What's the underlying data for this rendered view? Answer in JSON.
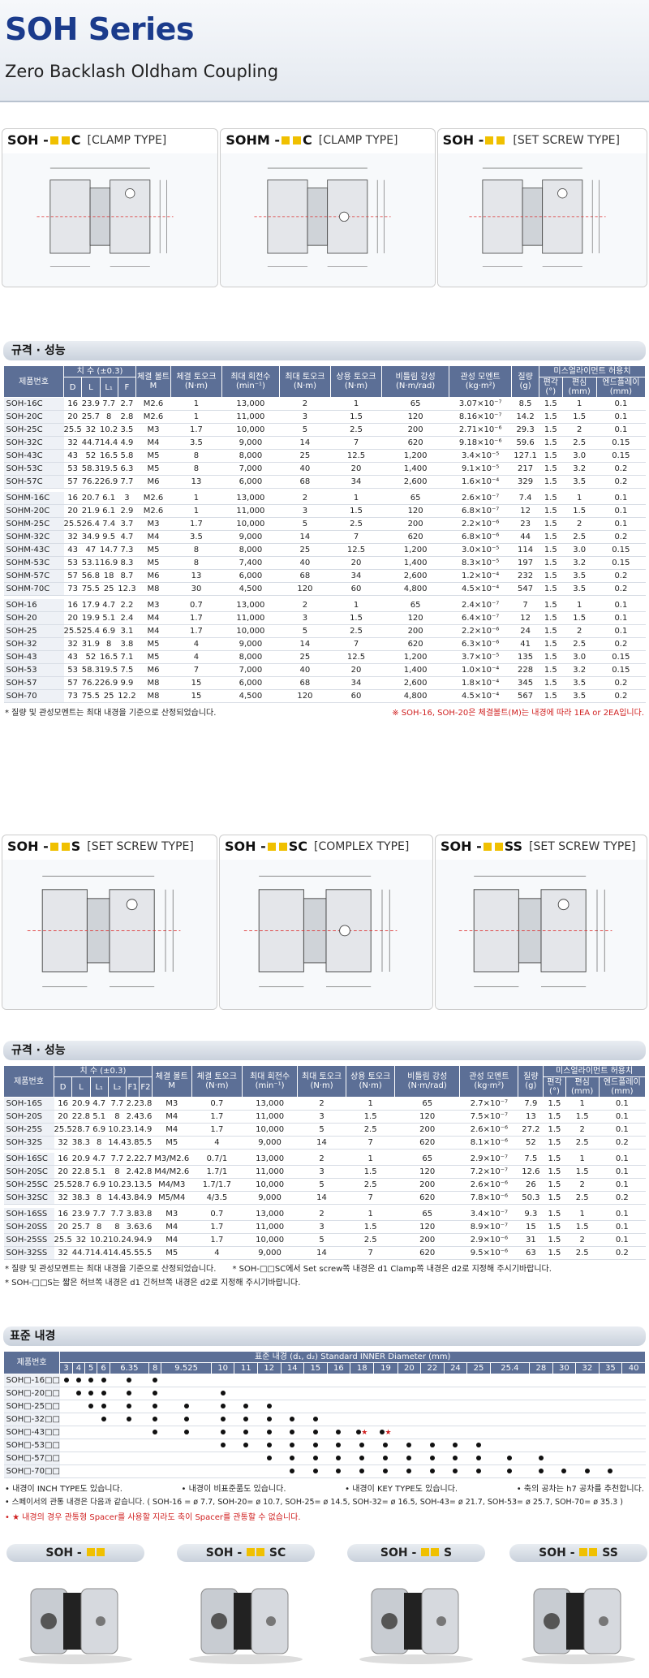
{
  "title": "SOH Series",
  "subtitle": "Zero Backlash Oldham Coupling",
  "drawings1": [
    {
      "name": "SOH -",
      "suffix": "C",
      "type": "[CLAMP TYPE]"
    },
    {
      "name": "SOHM -",
      "suffix": "C",
      "type": "[CLAMP TYPE]"
    },
    {
      "name": "SOH -",
      "suffix": "",
      "type": "[SET SCREW TYPE]"
    }
  ],
  "drawings2": [
    {
      "name": "SOH -",
      "suffix": "S",
      "type": "[SET SCREW TYPE]"
    },
    {
      "name": "SOH -",
      "suffix": "SC",
      "type": "[COMPLEX TYPE]"
    },
    {
      "name": "SOH -",
      "suffix": "SS",
      "type": "[SET SCREW TYPE]"
    }
  ],
  "spec_title": "규격 · 성능",
  "t1": {
    "head": [
      "제품번호",
      "치 수 (±0.3)",
      "체결 볼트 M",
      "체결 토오크 (N·m)",
      "최대 회전수 (min⁻¹)",
      "최대 토오크 (N·m)",
      "상용 토오크 (N·m)",
      "비틀림 강성 (N·m/rad)",
      "관성 모멘트 (kg·m²)",
      "질량 (g)",
      "미스얼라이먼트 허용치"
    ],
    "sub": [
      "D",
      "L",
      "L₁",
      "F",
      "편각 (°)",
      "편심 (mm)",
      "엔드플레이 (mm)"
    ],
    "groups": [
      [
        [
          "SOH-16C",
          "16",
          "23.9",
          "7.7",
          "2.7",
          "M2.6",
          "1",
          "13,000",
          "2",
          "1",
          "65",
          "3.07×10⁻⁷",
          "8.5",
          "1.5",
          "1",
          "0.1"
        ],
        [
          "SOH-20C",
          "20",
          "25.7",
          "8",
          "2.8",
          "M2.6",
          "1",
          "11,000",
          "3",
          "1.5",
          "120",
          "8.16×10⁻⁷",
          "14.2",
          "1.5",
          "1.5",
          "0.1"
        ],
        [
          "SOH-25C",
          "25.5",
          "32",
          "10.2",
          "3.5",
          "M3",
          "1.7",
          "10,000",
          "5",
          "2.5",
          "200",
          "2.71×10⁻⁶",
          "29.3",
          "1.5",
          "2",
          "0.1"
        ],
        [
          "SOH-32C",
          "32",
          "44.7",
          "14.4",
          "4.9",
          "M4",
          "3.5",
          "9,000",
          "14",
          "7",
          "620",
          "9.18×10⁻⁶",
          "59.6",
          "1.5",
          "2.5",
          "0.15"
        ],
        [
          "SOH-43C",
          "43",
          "52",
          "16.5",
          "5.8",
          "M5",
          "8",
          "8,000",
          "25",
          "12.5",
          "1,200",
          "3.4×10⁻⁵",
          "127.1",
          "1.5",
          "3.0",
          "0.15"
        ],
        [
          "SOH-53C",
          "53",
          "58.3",
          "19.5",
          "6.3",
          "M5",
          "8",
          "7,000",
          "40",
          "20",
          "1,400",
          "9.1×10⁻⁵",
          "217",
          "1.5",
          "3.2",
          "0.2"
        ],
        [
          "SOH-57C",
          "57",
          "76.2",
          "26.9",
          "7.7",
          "M6",
          "13",
          "6,000",
          "68",
          "34",
          "2,600",
          "1.6×10⁻⁴",
          "329",
          "1.5",
          "3.5",
          "0.2"
        ]
      ],
      [
        [
          "SOHM-16C",
          "16",
          "20.7",
          "6.1",
          "3",
          "M2.6",
          "1",
          "13,000",
          "2",
          "1",
          "65",
          "2.6×10⁻⁷",
          "7.4",
          "1.5",
          "1",
          "0.1"
        ],
        [
          "SOHM-20C",
          "20",
          "21.9",
          "6.1",
          "2.9",
          "M2.6",
          "1",
          "11,000",
          "3",
          "1.5",
          "120",
          "6.8×10⁻⁷",
          "12",
          "1.5",
          "1.5",
          "0.1"
        ],
        [
          "SOHM-25C",
          "25.5",
          "26.4",
          "7.4",
          "3.7",
          "M3",
          "1.7",
          "10,000",
          "5",
          "2.5",
          "200",
          "2.2×10⁻⁶",
          "23",
          "1.5",
          "2",
          "0.1"
        ],
        [
          "SOHM-32C",
          "32",
          "34.9",
          "9.5",
          "4.7",
          "M4",
          "3.5",
          "9,000",
          "14",
          "7",
          "620",
          "6.8×10⁻⁶",
          "44",
          "1.5",
          "2.5",
          "0.2"
        ],
        [
          "SOHM-43C",
          "43",
          "47",
          "14.7",
          "7.3",
          "M5",
          "8",
          "8,000",
          "25",
          "12.5",
          "1,200",
          "3.0×10⁻⁵",
          "114",
          "1.5",
          "3.0",
          "0.15"
        ],
        [
          "SOHM-53C",
          "53",
          "53.1",
          "16.9",
          "8.3",
          "M5",
          "8",
          "7,400",
          "40",
          "20",
          "1,400",
          "8.3×10⁻⁵",
          "197",
          "1.5",
          "3.2",
          "0.15"
        ],
        [
          "SOHM-57C",
          "57",
          "56.8",
          "18",
          "8.7",
          "M6",
          "13",
          "6,000",
          "68",
          "34",
          "2,600",
          "1.2×10⁻⁴",
          "232",
          "1.5",
          "3.5",
          "0.2"
        ],
        [
          "SOHM-70C",
          "73",
          "75.5",
          "25",
          "12.3",
          "M8",
          "30",
          "4,500",
          "120",
          "60",
          "4,800",
          "4.5×10⁻⁴",
          "547",
          "1.5",
          "3.5",
          "0.2"
        ]
      ],
      [
        [
          "SOH-16",
          "16",
          "17.9",
          "4.7",
          "2.2",
          "M3",
          "0.7",
          "13,000",
          "2",
          "1",
          "65",
          "2.4×10⁻⁷",
          "7",
          "1.5",
          "1",
          "0.1"
        ],
        [
          "SOH-20",
          "20",
          "19.9",
          "5.1",
          "2.4",
          "M4",
          "1.7",
          "11,000",
          "3",
          "1.5",
          "120",
          "6.4×10⁻⁷",
          "12",
          "1.5",
          "1.5",
          "0.1"
        ],
        [
          "SOH-25",
          "25.5",
          "25.4",
          "6.9",
          "3.1",
          "M4",
          "1.7",
          "10,000",
          "5",
          "2.5",
          "200",
          "2.2×10⁻⁶",
          "24",
          "1.5",
          "2",
          "0.1"
        ],
        [
          "SOH-32",
          "32",
          "31.9",
          "8",
          "3.8",
          "M5",
          "4",
          "9,000",
          "14",
          "7",
          "620",
          "6.3×10⁻⁶",
          "41",
          "1.5",
          "2.5",
          "0.2"
        ],
        [
          "SOH-43",
          "43",
          "52",
          "16.5",
          "7.1",
          "M5",
          "4",
          "8,000",
          "25",
          "12.5",
          "1,200",
          "3.7×10⁻⁵",
          "135",
          "1.5",
          "3.0",
          "0.15"
        ],
        [
          "SOH-53",
          "53",
          "58.3",
          "19.5",
          "7.5",
          "M6",
          "7",
          "7,000",
          "40",
          "20",
          "1,400",
          "1.0×10⁻⁴",
          "228",
          "1.5",
          "3.2",
          "0.15"
        ],
        [
          "SOH-57",
          "57",
          "76.2",
          "26.9",
          "9.9",
          "M8",
          "15",
          "6,000",
          "68",
          "34",
          "2,600",
          "1.8×10⁻⁴",
          "345",
          "1.5",
          "3.5",
          "0.2"
        ],
        [
          "SOH-70",
          "73",
          "75.5",
          "25",
          "12.2",
          "M8",
          "15",
          "4,500",
          "120",
          "60",
          "4,800",
          "4.5×10⁻⁴",
          "567",
          "1.5",
          "3.5",
          "0.2"
        ]
      ]
    ],
    "note_left": "* 질량 및 관성모멘트는 최대 내경을 기준으로 산정되었습니다.",
    "note_right": "※ SOH-16, SOH-20은 체결볼트(M)는 내경에 따라 1EA or 2EA입니다."
  },
  "t2": {
    "sub": [
      "D",
      "L",
      "L₁",
      "L₂",
      "F1",
      "F2",
      "편각 (°)",
      "편심 (mm)",
      "엔드플레이 (mm)"
    ],
    "groups": [
      [
        [
          "SOH-16S",
          "16",
          "20.9",
          "4.7",
          "7.7",
          "2.2",
          "3.8",
          "M3",
          "0.7",
          "13,000",
          "2",
          "1",
          "65",
          "2.7×10⁻⁷",
          "7.9",
          "1.5",
          "1",
          "0.1"
        ],
        [
          "SOH-20S",
          "20",
          "22.8",
          "5.1",
          "8",
          "2.4",
          "3.6",
          "M4",
          "1.7",
          "11,000",
          "3",
          "1.5",
          "120",
          "7.5×10⁻⁷",
          "13",
          "1.5",
          "1.5",
          "0.1"
        ],
        [
          "SOH-25S",
          "25.5",
          "28.7",
          "6.9",
          "10.2",
          "3.1",
          "4.9",
          "M4",
          "1.7",
          "10,000",
          "5",
          "2.5",
          "200",
          "2.6×10⁻⁶",
          "27.2",
          "1.5",
          "2",
          "0.1"
        ],
        [
          "SOH-32S",
          "32",
          "38.3",
          "8",
          "14.4",
          "3.8",
          "5.5",
          "M5",
          "4",
          "9,000",
          "14",
          "7",
          "620",
          "8.1×10⁻⁶",
          "52",
          "1.5",
          "2.5",
          "0.2"
        ]
      ],
      [
        [
          "SOH-16SC",
          "16",
          "20.9",
          "4.7",
          "7.7",
          "2.2",
          "2.7",
          "M3/M2.6",
          "0.7/1",
          "13,000",
          "2",
          "1",
          "65",
          "2.9×10⁻⁷",
          "7.5",
          "1.5",
          "1",
          "0.1"
        ],
        [
          "SOH-20SC",
          "20",
          "22.8",
          "5.1",
          "8",
          "2.4",
          "2.8",
          "M4/M2.6",
          "1.7/1",
          "11,000",
          "3",
          "1.5",
          "120",
          "7.2×10⁻⁷",
          "12.6",
          "1.5",
          "1.5",
          "0.1"
        ],
        [
          "SOH-25SC",
          "25.5",
          "28.7",
          "6.9",
          "10.2",
          "3.1",
          "3.5",
          "M4/M3",
          "1.7/1.7",
          "10,000",
          "5",
          "2.5",
          "200",
          "2.6×10⁻⁶",
          "26",
          "1.5",
          "2",
          "0.1"
        ],
        [
          "SOH-32SC",
          "32",
          "38.3",
          "8",
          "14.4",
          "3.8",
          "4.9",
          "M5/M4",
          "4/3.5",
          "9,000",
          "14",
          "7",
          "620",
          "7.8×10⁻⁶",
          "50.3",
          "1.5",
          "2.5",
          "0.2"
        ]
      ],
      [
        [
          "SOH-16SS",
          "16",
          "23.9",
          "7.7",
          "7.7",
          "3.8",
          "3.8",
          "M3",
          "0.7",
          "13,000",
          "2",
          "1",
          "65",
          "3.4×10⁻⁷",
          "9.3",
          "1.5",
          "1",
          "0.1"
        ],
        [
          "SOH-20SS",
          "20",
          "25.7",
          "8",
          "8",
          "3.6",
          "3.6",
          "M4",
          "1.7",
          "11,000",
          "3",
          "1.5",
          "120",
          "8.9×10⁻⁷",
          "15",
          "1.5",
          "1.5",
          "0.1"
        ],
        [
          "SOH-25SS",
          "25.5",
          "32",
          "10.2",
          "10.2",
          "4.9",
          "4.9",
          "M4",
          "1.7",
          "10,000",
          "5",
          "2.5",
          "200",
          "2.9×10⁻⁶",
          "31",
          "1.5",
          "2",
          "0.1"
        ],
        [
          "SOH-32SS",
          "32",
          "44.7",
          "14.4",
          "14.4",
          "5.5",
          "5.5",
          "M5",
          "4",
          "9,000",
          "14",
          "7",
          "620",
          "9.5×10⁻⁶",
          "63",
          "1.5",
          "2.5",
          "0.2"
        ]
      ]
    ],
    "note1": "* 질량 및 관성모멘트는 최대 내경을 기준으로 산정되었습니다.",
    "note1b": "* SOH-□□SC에서 Set screw쪽 내경은 d1 Clamp쪽 내경은 d2로 지정해 주시기바랍니다.",
    "note2": "* SOH-□□S는 짧은 허브쪽 내경은 d1 긴허브쪽 내경은 d2로 지정해 주시기바랍니다."
  },
  "bore": {
    "title": "표준 내경",
    "caption": "표준 내경 (d₁, d₂) Standard INNER Diameter (mm)",
    "model_head": "제품번호",
    "sizes": [
      "3",
      "4",
      "5",
      "6",
      "6.35",
      "8",
      "9.525",
      "10",
      "11",
      "12",
      "14",
      "15",
      "16",
      "18",
      "19",
      "20",
      "22",
      "24",
      "25",
      "25.4",
      "28",
      "30",
      "32",
      "35",
      "40"
    ],
    "rows": [
      {
        "m": "SOH□-16□□",
        "d": [
          1,
          1,
          1,
          1,
          1,
          1,
          0,
          0,
          0,
          0,
          0,
          0,
          0,
          0,
          0,
          0,
          0,
          0,
          0,
          0,
          0,
          0,
          0,
          0,
          0
        ]
      },
      {
        "m": "SOH□-20□□",
        "d": [
          0,
          1,
          1,
          1,
          1,
          1,
          0,
          1,
          0,
          0,
          0,
          0,
          0,
          0,
          0,
          0,
          0,
          0,
          0,
          0,
          0,
          0,
          0,
          0,
          0
        ]
      },
      {
        "m": "SOH□-25□□",
        "d": [
          0,
          0,
          1,
          1,
          1,
          1,
          1,
          1,
          1,
          1,
          0,
          0,
          0,
          0,
          0,
          0,
          0,
          0,
          0,
          0,
          0,
          0,
          0,
          0,
          0
        ]
      },
      {
        "m": "SOH□-32□□",
        "d": [
          0,
          0,
          0,
          1,
          1,
          1,
          1,
          1,
          1,
          1,
          1,
          1,
          0,
          0,
          0,
          0,
          0,
          0,
          0,
          0,
          0,
          0,
          0,
          0,
          0
        ]
      },
      {
        "m": "SOH□-43□□",
        "d": [
          0,
          0,
          0,
          0,
          0,
          1,
          1,
          1,
          1,
          1,
          1,
          1,
          1,
          2,
          2,
          0,
          0,
          0,
          0,
          0,
          0,
          0,
          0,
          0,
          0
        ]
      },
      {
        "m": "SOH□-53□□",
        "d": [
          0,
          0,
          0,
          0,
          0,
          0,
          0,
          1,
          1,
          1,
          1,
          1,
          1,
          1,
          1,
          1,
          1,
          1,
          1,
          0,
          0,
          0,
          0,
          0,
          0
        ]
      },
      {
        "m": "SOH□-57□□",
        "d": [
          0,
          0,
          0,
          0,
          0,
          0,
          0,
          0,
          0,
          1,
          1,
          1,
          1,
          1,
          1,
          1,
          1,
          1,
          1,
          1,
          1,
          0,
          0,
          0,
          0
        ]
      },
      {
        "m": "SOH□-70□□",
        "d": [
          0,
          0,
          0,
          0,
          0,
          0,
          0,
          0,
          0,
          0,
          1,
          1,
          1,
          1,
          1,
          1,
          1,
          1,
          1,
          1,
          1,
          1,
          1,
          1,
          0
        ]
      }
    ],
    "n1": "• 내경이 INCH TYPE도 있습니다.",
    "n2": "• 내경이 비표준품도 있습니다.",
    "n3": "• 내경이 KEY TYPE도 있습니다.",
    "n4": "• 축의 공차는 h7 공차를 추천합니다.",
    "n5": "• 스페이서의 관통 내경은 다음과 같습니다. ( SOH-16 = ø 7.7, SOH-20= ø 10.7, SOH-25= ø 14.5, SOH-32= ø 16.5, SOH-43= ø 21.7, SOH-53= ø 25.7, SOH-70= ø 35.3 )",
    "n6": "• ★ 내경의 경우 관통형 Spacer를 사용할 지라도 축이 Spacer를 관통할 수 없습니다."
  },
  "products": [
    {
      "name": "SOH -",
      "suffix": ""
    },
    {
      "name": "SOH -",
      "suffix": "SC"
    },
    {
      "name": "SOH -",
      "suffix": "S"
    },
    {
      "name": "SOH -",
      "suffix": "SS"
    }
  ],
  "colors": {
    "accent": "#1b3b8c",
    "header": "#5c6f96",
    "square": "#f0c000",
    "red": "#d02020"
  }
}
